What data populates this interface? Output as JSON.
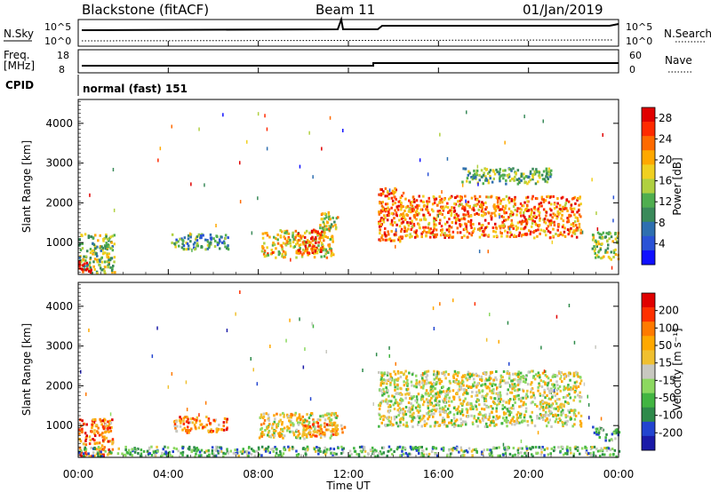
{
  "header": {
    "station": "Blackstone (fitACF)",
    "beam": "Beam 11",
    "date": "01/Jan/2019"
  },
  "meta_panels": {
    "nsky_label": "N.Sky",
    "nsearch_label": "N.Search",
    "noise_tick_hi": "10^5",
    "noise_tick_lo": "10^0",
    "freq_label_1": "Freq.",
    "freq_label_2": "[MHz]",
    "freq_tick_hi": "18",
    "freq_tick_lo": "8",
    "nave_label": "Nave",
    "nave_tick_hi": "60",
    "nave_tick_lo": "0",
    "cpid_label": "CPID",
    "cpid_value": "normal (fast) 151"
  },
  "chart_data": [
    {
      "type": "heatmap",
      "name": "power",
      "ylabel": "Slant Range [km]",
      "ylim": [
        200,
        4600
      ],
      "yticks": [
        "1000",
        "2000",
        "3000",
        "4000"
      ],
      "xlim": [
        0,
        24
      ],
      "colorbar": {
        "label": "Power [dB]",
        "ticks": [
          "4",
          "8",
          "12",
          "16",
          "20",
          "24",
          "28"
        ],
        "range": [
          0,
          30
        ],
        "colors": [
          "#1010ff",
          "#2a52d6",
          "#2e6fb0",
          "#3a8a5a",
          "#4fae4f",
          "#b0d040",
          "#f0d020",
          "#ffa800",
          "#ff6a00",
          "#ff2a00",
          "#e00000"
        ]
      },
      "regions": [
        {
          "t0": 0.0,
          "t1": 1.6,
          "r0": 250,
          "r1": 1250,
          "level": 0.45
        },
        {
          "t0": 0.0,
          "t1": 0.6,
          "r0": 250,
          "r1": 550,
          "level": 0.95
        },
        {
          "t0": 4.1,
          "t1": 6.7,
          "r0": 850,
          "r1": 1250,
          "level": 0.35
        },
        {
          "t0": 8.1,
          "t1": 11.3,
          "r0": 650,
          "r1": 1350,
          "level": 0.6
        },
        {
          "t0": 9.6,
          "t1": 10.8,
          "r0": 750,
          "r1": 1350,
          "level": 0.85
        },
        {
          "t0": 10.7,
          "t1": 11.5,
          "r0": 1350,
          "r1": 1800,
          "level": 0.55
        },
        {
          "t0": 13.3,
          "t1": 14.5,
          "r0": 1050,
          "r1": 2400,
          "level": 0.8
        },
        {
          "t0": 14.5,
          "t1": 22.3,
          "r0": 1150,
          "r1": 2200,
          "level": 0.75
        },
        {
          "t0": 22.8,
          "t1": 24.0,
          "r0": 600,
          "r1": 1300,
          "level": 0.5
        },
        {
          "t0": 17.0,
          "t1": 21.0,
          "r0": 2500,
          "r1": 2900,
          "level": 0.4
        }
      ]
    },
    {
      "type": "heatmap",
      "name": "velocity",
      "ylabel": "Slant Range [km]",
      "ylim": [
        200,
        4600
      ],
      "yticks": [
        "1000",
        "2000",
        "3000",
        "4000"
      ],
      "xlabel": "Time UT",
      "xticks": [
        "00:00",
        "04:00",
        "08:00",
        "12:00",
        "16:00",
        "20:00",
        "00:00"
      ],
      "xlim": [
        0,
        24
      ],
      "colorbar": {
        "label": "Velocity [m s⁻¹]",
        "ticks": [
          "200",
          "100",
          "50",
          "15",
          "-15",
          "-50",
          "-100",
          "-200"
        ],
        "colors": [
          "#1a1aa8",
          "#2244d0",
          "#2e8a4a",
          "#42b542",
          "#8cd860",
          "#c8c8c0",
          "#f0c030",
          "#ffa800",
          "#ff7a00",
          "#ff3000",
          "#e00000"
        ]
      },
      "regions": [
        {
          "t0": 0.0,
          "t1": 1.5,
          "r0": 250,
          "r1": 1200,
          "level": 0.75
        },
        {
          "t0": 4.2,
          "t1": 6.6,
          "r0": 850,
          "r1": 1250,
          "level": 0.72
        },
        {
          "t0": 8.0,
          "t1": 11.5,
          "r0": 700,
          "r1": 1350,
          "level": 0.55
        },
        {
          "t0": 9.8,
          "t1": 11.8,
          "r0": 750,
          "r1": 1100,
          "level": 0.72
        },
        {
          "t0": 13.3,
          "t1": 22.3,
          "r0": 1000,
          "r1": 2400,
          "level": 0.5
        },
        {
          "t0": 0.0,
          "t1": 24.0,
          "r0": 250,
          "r1": 500,
          "level": 0.35
        },
        {
          "t0": 22.8,
          "t1": 24.0,
          "r0": 650,
          "r1": 1000,
          "level": 0.3
        }
      ]
    }
  ]
}
